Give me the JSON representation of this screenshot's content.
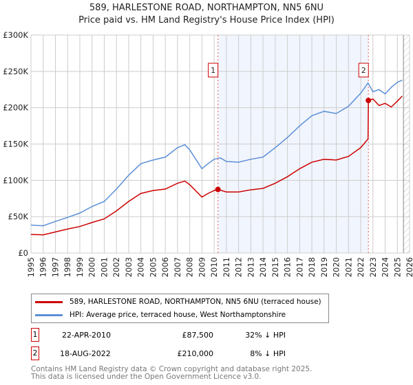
{
  "title": "589, HARLESTONE ROAD, NORTHAMPTON, NN5 6NU",
  "subtitle": "Price paid vs. HM Land Registry's House Price Index (HPI)",
  "chart_data": {
    "type": "line",
    "xlim": [
      1995,
      2026
    ],
    "ylim": [
      0,
      300000
    ],
    "x_ticks": [
      "1995",
      "1996",
      "1997",
      "1998",
      "1999",
      "2000",
      "2001",
      "2002",
      "2003",
      "2004",
      "2005",
      "2006",
      "2007",
      "2008",
      "2009",
      "2010",
      "2011",
      "2012",
      "2013",
      "2014",
      "2015",
      "2016",
      "2017",
      "2018",
      "2019",
      "2020",
      "2021",
      "2022",
      "2023",
      "2024",
      "2025",
      "2026"
    ],
    "y_ticks": [
      {
        "v": 0,
        "label": "£0"
      },
      {
        "v": 50000,
        "label": "£50K"
      },
      {
        "v": 100000,
        "label": "£100K"
      },
      {
        "v": 150000,
        "label": "£150K"
      },
      {
        "v": 200000,
        "label": "£200K"
      },
      {
        "v": 250000,
        "label": "£250K"
      },
      {
        "v": 300000,
        "label": "£300K"
      }
    ],
    "series": [
      {
        "name": "589, HARLESTONE ROAD, NORTHAMPTON, NN5 6NU (terraced house)",
        "color": "#cc0000",
        "x": [
          1995,
          1996,
          1997,
          1998,
          1999,
          2000,
          2001,
          2002,
          2003,
          2004,
          2005,
          2006,
          2007,
          2007.6,
          2008,
          2009,
          2009.5,
          2010,
          2010.3,
          2011,
          2012,
          2013,
          2014,
          2015,
          2016,
          2017,
          2018,
          2019,
          2020,
          2021,
          2022,
          2022.6,
          2022.63,
          2023,
          2023.5,
          2024,
          2024.5,
          2025,
          2025.4
        ],
        "y": [
          25500,
          25000,
          29000,
          33000,
          36500,
          42000,
          47000,
          58000,
          71000,
          82000,
          86000,
          88000,
          96000,
          99000,
          94000,
          77000,
          82000,
          86000,
          87500,
          84000,
          84000,
          87000,
          89000,
          96000,
          105000,
          116000,
          125000,
          129000,
          128000,
          133000,
          145000,
          157000,
          210000,
          212000,
          203000,
          206000,
          201000,
          209000,
          216000
        ]
      },
      {
        "name": "HPI: Average price, terraced house, West Northamptonshire",
        "color": "#5b8fd6",
        "x": [
          1995,
          1996,
          1997,
          1998,
          1999,
          2000,
          2001,
          2002,
          2003,
          2004,
          2005,
          2006,
          2007,
          2007.6,
          2008,
          2009,
          2009.5,
          2010,
          2010.5,
          2011,
          2012,
          2013,
          2014,
          2015,
          2016,
          2017,
          2018,
          2019,
          2020,
          2021,
          2022,
          2022.6,
          2023,
          2023.5,
          2024,
          2024.5,
          2025,
          2025.4
        ],
        "y": [
          38500,
          37500,
          43500,
          49000,
          55000,
          64000,
          71000,
          88000,
          107000,
          123000,
          128000,
          132000,
          145000,
          149000,
          142000,
          116000,
          123000,
          129000,
          131000,
          126000,
          125000,
          129000,
          132000,
          145000,
          159000,
          175000,
          189000,
          195000,
          192000,
          202000,
          220000,
          234000,
          222000,
          225000,
          219000,
          228000,
          235000,
          238000
        ]
      }
    ],
    "annotations": [
      {
        "label": "1",
        "x": 2010.31,
        "y": 87500
      },
      {
        "label": "2",
        "x": 2022.63,
        "y": 210000
      }
    ],
    "shaded_range": [
      2010.31,
      2022.63
    ],
    "hatched_from": 2025.5
  },
  "legend": {
    "red": "589, HARLESTONE ROAD, NORTHAMPTON, NN5 6NU (terraced house)",
    "blue": "HPI: Average price, terraced house, West Northamptonshire"
  },
  "transactions": [
    {
      "num": "1",
      "date": "22-APR-2010",
      "price": "£87,500",
      "hpi": "32% ↓ HPI"
    },
    {
      "num": "2",
      "date": "18-AUG-2022",
      "price": "£210,000",
      "hpi": "8% ↓ HPI"
    }
  ],
  "footer": [
    "Contains HM Land Registry data © Crown copyright and database right 2025.",
    "This data is licensed under the Open Government Licence v3.0."
  ]
}
